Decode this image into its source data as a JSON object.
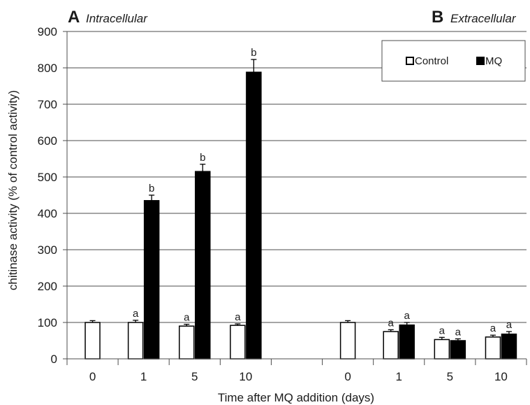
{
  "chart_data": {
    "type": "bar",
    "ylabel": "chitinase activity (% of control activity)",
    "xlabel": "Time after MQ addition (days)",
    "ylim": [
      0,
      900
    ],
    "yticks": [
      "0",
      "100",
      "200",
      "300",
      "400",
      "500",
      "600",
      "700",
      "800",
      "900"
    ],
    "grid": true,
    "legend": {
      "position": "top-right",
      "entries": [
        "Control",
        "MQ"
      ]
    },
    "colors": {
      "Control": "#ffffff",
      "MQ": "#000000",
      "axis": "#4d4d4d",
      "grid": "#4d4d4d"
    },
    "panels": [
      {
        "letter": "A",
        "title": "Intracellular",
        "categories": [
          "0",
          "1",
          "5",
          "10"
        ],
        "series": [
          {
            "name": "Control",
            "values": [
              100,
              100,
              90,
              92
            ],
            "errors": [
              5,
              6,
              5,
              4
            ],
            "labels": [
              "",
              "a",
              "a",
              "a"
            ]
          },
          {
            "name": "MQ",
            "values": [
              null,
              435,
              515,
              788
            ],
            "errors": [
              null,
              15,
              20,
              35
            ],
            "labels": [
              "",
              "b",
              "b",
              "b"
            ]
          }
        ]
      },
      {
        "letter": "B",
        "title": "Extracellular",
        "categories": [
          "0",
          "1",
          "5",
          "10"
        ],
        "series": [
          {
            "name": "Control",
            "values": [
              100,
              75,
              53,
              60
            ],
            "errors": [
              5,
              5,
              6,
              5
            ],
            "labels": [
              "",
              "a",
              "a",
              "a"
            ]
          },
          {
            "name": "MQ",
            "values": [
              null,
              93,
              50,
              68
            ],
            "errors": [
              null,
              7,
              5,
              7
            ],
            "labels": [
              "",
              "a",
              "a",
              "a"
            ]
          }
        ]
      }
    ]
  }
}
